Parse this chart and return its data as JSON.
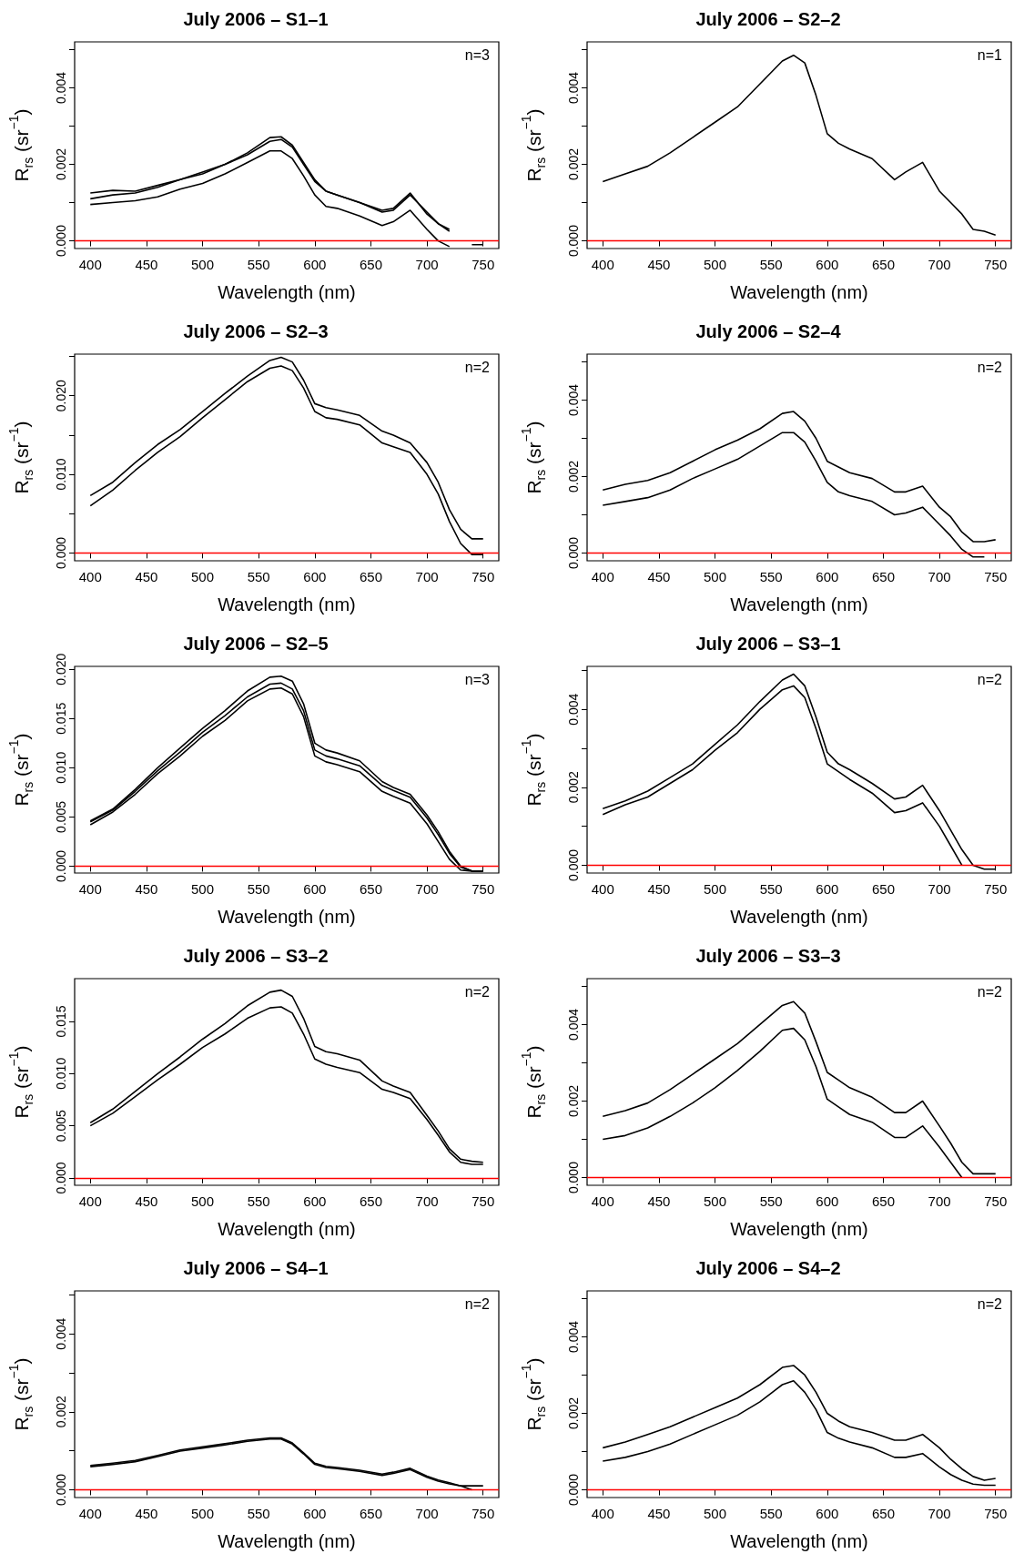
{
  "chart_data": [
    {
      "type": "line",
      "title": "July 2006 – S1–1",
      "xlabel": "Wavelength (nm)",
      "ylabel": "R$_{rs}$ (sr$^{−1}$)",
      "annotations": [
        "n=3"
      ],
      "x": [
        400,
        420,
        440,
        460,
        480,
        500,
        520,
        540,
        560,
        570,
        580,
        590,
        600,
        610,
        620,
        640,
        660,
        670,
        685,
        700,
        710,
        720,
        730,
        740,
        750
      ],
      "xlim": [
        386,
        764
      ],
      "xticks": [
        400,
        450,
        500,
        550,
        600,
        650,
        700,
        750
      ],
      "ylim": [
        -0.0002,
        0.0052
      ],
      "yticks": [
        {
          "value": 0,
          "label": "0.000"
        },
        {
          "value": 0.001,
          "label": null
        },
        {
          "value": 0.002,
          "label": "0.002"
        },
        {
          "value": 0.003,
          "label": null
        },
        {
          "value": 0.004,
          "label": "0.004"
        },
        {
          "value": 0.005,
          "label": null
        }
      ],
      "grid": false,
      "ref_lines": [
        {
          "axis": "y",
          "value": 0,
          "color": "#ff0000"
        }
      ],
      "series": [
        {
          "color": "#000000",
          "values": [
            0.00125,
            0.00132,
            0.0013,
            0.00145,
            0.0016,
            0.0018,
            0.002,
            0.0023,
            0.0027,
            0.00272,
            0.0025,
            0.00205,
            0.0016,
            0.0013,
            0.0012,
            0.001,
            0.0008,
            0.00085,
            0.00125,
            0.0007,
            0.00045,
            0.0003,
            null,
            null,
            null
          ]
        },
        {
          "color": "#000000",
          "values": [
            0.0011,
            0.0012,
            0.00125,
            0.0014,
            0.0016,
            0.00175,
            0.002,
            0.00225,
            0.0026,
            0.00265,
            0.00245,
            0.002,
            0.00155,
            0.0013,
            0.0012,
            0.001,
            0.00075,
            0.0008,
            0.0012,
            0.00075,
            0.00045,
            0.00025,
            null,
            null,
            null
          ]
        },
        {
          "color": "#000000",
          "values": [
            0.00095,
            0.001,
            0.00105,
            0.00115,
            0.00135,
            0.0015,
            0.00175,
            0.00205,
            0.00235,
            0.00235,
            0.00215,
            0.0017,
            0.0012,
            0.0009,
            0.00085,
            0.00065,
            0.0004,
            0.0005,
            0.0008,
            0.0003,
            0.0,
            -0.00015,
            null,
            -0.0001,
            -0.0001
          ]
        }
      ]
    },
    {
      "type": "line",
      "title": "July 2006 – S2–2",
      "xlabel": "Wavelength (nm)",
      "ylabel": "R$_{rs}$ (sr$^{−1}$)",
      "annotations": [
        "n=1"
      ],
      "x": [
        400,
        420,
        440,
        460,
        480,
        500,
        520,
        540,
        560,
        570,
        580,
        590,
        600,
        610,
        620,
        640,
        660,
        670,
        685,
        700,
        710,
        720,
        730,
        740,
        750
      ],
      "xlim": [
        386,
        764
      ],
      "xticks": [
        400,
        450,
        500,
        550,
        600,
        650,
        700,
        750
      ],
      "ylim": [
        -0.0002,
        0.0052
      ],
      "yticks": [
        {
          "value": 0,
          "label": "0.000"
        },
        {
          "value": 0.001,
          "label": null
        },
        {
          "value": 0.002,
          "label": "0.002"
        },
        {
          "value": 0.003,
          "label": null
        },
        {
          "value": 0.004,
          "label": "0.004"
        },
        {
          "value": 0.005,
          "label": null
        }
      ],
      "grid": false,
      "ref_lines": [
        {
          "axis": "y",
          "value": 0,
          "color": "#ff0000"
        }
      ],
      "series": [
        {
          "color": "#000000",
          "values": [
            0.00155,
            0.00175,
            0.00195,
            0.0023,
            0.0027,
            0.0031,
            0.0035,
            0.0041,
            0.0047,
            0.00485,
            0.00465,
            0.0038,
            0.0028,
            0.00255,
            0.0024,
            0.00215,
            0.0016,
            0.0018,
            0.00205,
            0.0013,
            0.001,
            0.0007,
            0.0003,
            0.00025,
            0.00015
          ]
        }
      ]
    },
    {
      "type": "line",
      "title": "July 2006 – S2–3",
      "xlabel": "Wavelength (nm)",
      "ylabel": "R$_{rs}$ (sr$^{−1}$)",
      "annotations": [
        "n=2"
      ],
      "x": [
        400,
        420,
        440,
        460,
        480,
        500,
        520,
        540,
        560,
        570,
        580,
        590,
        600,
        610,
        620,
        640,
        660,
        670,
        685,
        700,
        710,
        720,
        730,
        740,
        750
      ],
      "xlim": [
        386,
        764
      ],
      "xticks": [
        400,
        450,
        500,
        550,
        600,
        650,
        700,
        750
      ],
      "ylim": [
        -0.001,
        0.0253
      ],
      "yticks": [
        {
          "value": 0,
          "label": "0.000"
        },
        {
          "value": 0.005,
          "label": null
        },
        {
          "value": 0.01,
          "label": "0.010"
        },
        {
          "value": 0.015,
          "label": null
        },
        {
          "value": 0.02,
          "label": "0.020"
        },
        {
          "value": 0.025,
          "label": null
        }
      ],
      "grid": false,
      "ref_lines": [
        {
          "axis": "y",
          "value": 0,
          "color": "#ff0000"
        }
      ],
      "series": [
        {
          "color": "#000000",
          "values": [
            0.0073,
            0.009,
            0.0115,
            0.0138,
            0.0157,
            0.018,
            0.0203,
            0.0225,
            0.0245,
            0.0249,
            0.0243,
            0.022,
            0.019,
            0.0185,
            0.0182,
            0.0175,
            0.0155,
            0.015,
            0.014,
            0.0115,
            0.009,
            0.0055,
            0.003,
            0.0018,
            0.0018
          ]
        },
        {
          "color": "#000000",
          "values": [
            0.006,
            0.008,
            0.0105,
            0.0128,
            0.0148,
            0.0172,
            0.0195,
            0.0218,
            0.0235,
            0.0238,
            0.0232,
            0.021,
            0.018,
            0.0172,
            0.017,
            0.0163,
            0.014,
            0.0135,
            0.0128,
            0.01,
            0.0075,
            0.004,
            0.0012,
            -0.0002,
            -0.0002
          ]
        }
      ]
    },
    {
      "type": "line",
      "title": "July 2006 – S2–4",
      "xlabel": "Wavelength (nm)",
      "ylabel": "R$_{rs}$ (sr$^{−1}$)",
      "annotations": [
        "n=2"
      ],
      "x": [
        400,
        420,
        440,
        460,
        480,
        500,
        520,
        540,
        560,
        570,
        580,
        590,
        600,
        610,
        620,
        640,
        660,
        670,
        685,
        700,
        710,
        720,
        730,
        740,
        750
      ],
      "xlim": [
        386,
        764
      ],
      "xticks": [
        400,
        450,
        500,
        550,
        600,
        650,
        700,
        750
      ],
      "ylim": [
        -0.0002,
        0.0052
      ],
      "yticks": [
        {
          "value": 0,
          "label": "0.000"
        },
        {
          "value": 0.001,
          "label": null
        },
        {
          "value": 0.002,
          "label": "0.002"
        },
        {
          "value": 0.003,
          "label": null
        },
        {
          "value": 0.004,
          "label": "0.004"
        },
        {
          "value": 0.005,
          "label": null
        }
      ],
      "grid": false,
      "ref_lines": [
        {
          "axis": "y",
          "value": 0,
          "color": "#ff0000"
        }
      ],
      "series": [
        {
          "color": "#000000",
          "values": [
            0.00165,
            0.0018,
            0.0019,
            0.0021,
            0.0024,
            0.0027,
            0.00295,
            0.00325,
            0.00365,
            0.0037,
            0.00345,
            0.003,
            0.0024,
            0.00225,
            0.0021,
            0.00195,
            0.0016,
            0.0016,
            0.00175,
            0.0012,
            0.00095,
            0.00055,
            0.0003,
            0.0003,
            0.00035
          ]
        },
        {
          "color": "#000000",
          "values": [
            0.00125,
            0.00135,
            0.00145,
            0.00165,
            0.00195,
            0.0022,
            0.00245,
            0.0028,
            0.00315,
            0.00315,
            0.0029,
            0.0024,
            0.00185,
            0.0016,
            0.0015,
            0.00135,
            0.001,
            0.00105,
            0.0012,
            0.00075,
            0.00045,
            0.0001,
            -0.0001,
            -0.0001,
            null
          ]
        }
      ]
    },
    {
      "type": "line",
      "title": "July 2006 – S2–5",
      "xlabel": "Wavelength (nm)",
      "ylabel": "R$_{rs}$ (sr$^{−1}$)",
      "annotations": [
        "n=3"
      ],
      "x": [
        400,
        420,
        440,
        460,
        480,
        500,
        520,
        540,
        560,
        570,
        580,
        590,
        600,
        610,
        620,
        640,
        660,
        670,
        685,
        700,
        710,
        720,
        730,
        740,
        750
      ],
      "xlim": [
        386,
        764
      ],
      "xticks": [
        400,
        450,
        500,
        550,
        600,
        650,
        700,
        750
      ],
      "ylim": [
        -0.0007,
        0.0203
      ],
      "yticks": [
        {
          "value": 0,
          "label": "0.000"
        },
        {
          "value": 0.005,
          "label": "0.005"
        },
        {
          "value": 0.01,
          "label": "0.010"
        },
        {
          "value": 0.015,
          "label": "0.015"
        },
        {
          "value": 0.02,
          "label": "0.020"
        }
      ],
      "grid": false,
      "ref_lines": [
        {
          "axis": "y",
          "value": 0,
          "color": "#ff0000"
        }
      ],
      "series": [
        {
          "color": "#000000",
          "values": [
            0.0046,
            0.0058,
            0.0078,
            0.01,
            0.012,
            0.014,
            0.0158,
            0.0178,
            0.0192,
            0.0193,
            0.0188,
            0.0165,
            0.0125,
            0.0118,
            0.0115,
            0.0107,
            0.0086,
            0.008,
            0.0073,
            0.0052,
            0.0035,
            0.0015,
            0.0,
            -0.0005,
            -0.0005
          ]
        },
        {
          "color": "#000000",
          "values": [
            0.0045,
            0.0057,
            0.0076,
            0.0097,
            0.0116,
            0.0136,
            0.0153,
            0.0172,
            0.0185,
            0.0186,
            0.018,
            0.0158,
            0.0118,
            0.0112,
            0.0109,
            0.0102,
            0.0082,
            0.0077,
            0.007,
            0.0049,
            0.0032,
            0.0013,
            -0.0001,
            -0.0005,
            -0.0005
          ]
        },
        {
          "color": "#000000",
          "values": [
            0.0042,
            0.0055,
            0.0073,
            0.0094,
            0.0112,
            0.0132,
            0.0148,
            0.0168,
            0.018,
            0.0181,
            0.0175,
            0.0152,
            0.0112,
            0.0106,
            0.0103,
            0.0096,
            0.0076,
            0.0071,
            0.0064,
            0.0043,
            0.0025,
            0.0007,
            -0.0004,
            -0.0005,
            -0.0005
          ]
        }
      ]
    },
    {
      "type": "line",
      "title": "July 2006 – S3–1",
      "xlabel": "Wavelength (nm)",
      "ylabel": "R$_{rs}$ (sr$^{−1}$)",
      "annotations": [
        "n=2"
      ],
      "x": [
        400,
        420,
        440,
        460,
        480,
        500,
        520,
        540,
        560,
        570,
        580,
        590,
        600,
        610,
        620,
        640,
        660,
        670,
        685,
        700,
        710,
        720,
        730,
        740,
        750
      ],
      "xlim": [
        386,
        764
      ],
      "xticks": [
        400,
        450,
        500,
        550,
        600,
        650,
        700,
        750
      ],
      "ylim": [
        -0.0002,
        0.0051
      ],
      "yticks": [
        {
          "value": 0,
          "label": "0.000"
        },
        {
          "value": 0.001,
          "label": null
        },
        {
          "value": 0.002,
          "label": "0.002"
        },
        {
          "value": 0.003,
          "label": null
        },
        {
          "value": 0.004,
          "label": "0.004"
        },
        {
          "value": 0.005,
          "label": null
        }
      ],
      "grid": false,
      "ref_lines": [
        {
          "axis": "y",
          "value": 0,
          "color": "#ff0000"
        }
      ],
      "series": [
        {
          "color": "#000000",
          "values": [
            0.00145,
            0.00165,
            0.0019,
            0.00225,
            0.0026,
            0.0031,
            0.0036,
            0.0042,
            0.00475,
            0.0049,
            0.0046,
            0.0038,
            0.0029,
            0.0026,
            0.00245,
            0.0021,
            0.0017,
            0.00175,
            0.00205,
            0.0014,
            0.0009,
            0.0004,
            0.0,
            -0.0001,
            -0.0001
          ]
        },
        {
          "color": "#000000",
          "values": [
            0.0013,
            0.00155,
            0.00175,
            0.0021,
            0.00245,
            0.00295,
            0.0034,
            0.004,
            0.0045,
            0.0046,
            0.0043,
            0.0035,
            0.0026,
            0.0024,
            0.0022,
            0.00185,
            0.00135,
            0.0014,
            0.0016,
            0.001,
            0.0005,
            0.0,
            null,
            null,
            null
          ]
        }
      ]
    },
    {
      "type": "line",
      "title": "July 2006 – S3–2",
      "xlabel": "Wavelength (nm)",
      "ylabel": "R$_{rs}$ (sr$^{−1}$)",
      "annotations": [
        "n=2"
      ],
      "x": [
        400,
        420,
        440,
        460,
        480,
        500,
        520,
        540,
        560,
        570,
        580,
        590,
        600,
        610,
        620,
        640,
        660,
        670,
        685,
        700,
        710,
        720,
        730,
        740,
        750
      ],
      "xlim": [
        386,
        764
      ],
      "xticks": [
        400,
        450,
        500,
        550,
        600,
        650,
        700,
        750
      ],
      "ylim": [
        -0.0007,
        0.0191
      ],
      "yticks": [
        {
          "value": 0,
          "label": "0.000"
        },
        {
          "value": 0.005,
          "label": "0.005"
        },
        {
          "value": 0.01,
          "label": "0.010"
        },
        {
          "value": 0.015,
          "label": "0.015"
        }
      ],
      "grid": false,
      "ref_lines": [
        {
          "axis": "y",
          "value": 0,
          "color": "#ff0000"
        }
      ],
      "series": [
        {
          "color": "#000000",
          "values": [
            0.0053,
            0.0066,
            0.0083,
            0.01,
            0.0116,
            0.0133,
            0.0148,
            0.0165,
            0.0178,
            0.018,
            0.0174,
            0.0153,
            0.0126,
            0.0121,
            0.0119,
            0.0113,
            0.0093,
            0.0088,
            0.0082,
            0.006,
            0.0045,
            0.0028,
            0.0018,
            0.0016,
            0.0015
          ]
        },
        {
          "color": "#000000",
          "values": [
            0.005,
            0.0062,
            0.0078,
            0.0094,
            0.0109,
            0.0125,
            0.0138,
            0.0153,
            0.0163,
            0.0164,
            0.0158,
            0.0138,
            0.0114,
            0.0109,
            0.0106,
            0.0101,
            0.0085,
            0.0082,
            0.0076,
            0.0056,
            0.0041,
            0.0025,
            0.0015,
            0.0013,
            0.0013
          ]
        }
      ]
    },
    {
      "type": "line",
      "title": "July 2006 – S3–3",
      "xlabel": "Wavelength (nm)",
      "ylabel": "R$_{rs}$ (sr$^{−1}$)",
      "annotations": [
        "n=2"
      ],
      "x": [
        400,
        420,
        440,
        460,
        480,
        500,
        520,
        540,
        560,
        570,
        580,
        590,
        600,
        610,
        620,
        640,
        660,
        670,
        685,
        700,
        710,
        720,
        730,
        740,
        750
      ],
      "xlim": [
        386,
        764
      ],
      "xticks": [
        400,
        450,
        500,
        550,
        600,
        650,
        700,
        750
      ],
      "ylim": [
        -0.0002,
        0.0052
      ],
      "yticks": [
        {
          "value": 0,
          "label": "0.000"
        },
        {
          "value": 0.001,
          "label": null
        },
        {
          "value": 0.002,
          "label": "0.002"
        },
        {
          "value": 0.003,
          "label": null
        },
        {
          "value": 0.004,
          "label": "0.004"
        },
        {
          "value": 0.005,
          "label": null
        }
      ],
      "grid": false,
      "ref_lines": [
        {
          "axis": "y",
          "value": 0,
          "color": "#ff0000"
        }
      ],
      "series": [
        {
          "color": "#000000",
          "values": [
            0.0016,
            0.00175,
            0.00195,
            0.0023,
            0.0027,
            0.0031,
            0.0035,
            0.004,
            0.0045,
            0.0046,
            0.0043,
            0.00355,
            0.00275,
            0.00255,
            0.00235,
            0.0021,
            0.0017,
            0.0017,
            0.002,
            0.00135,
            0.0009,
            0.0004,
            0.0001,
            0.0001,
            0.0001
          ]
        },
        {
          "color": "#000000",
          "values": [
            0.001,
            0.0011,
            0.0013,
            0.0016,
            0.00195,
            0.00235,
            0.0028,
            0.0033,
            0.00385,
            0.0039,
            0.0036,
            0.0029,
            0.00205,
            0.00185,
            0.00165,
            0.00145,
            0.00105,
            0.00105,
            0.00135,
            0.0008,
            0.0004,
            0.0,
            null,
            null,
            null
          ]
        }
      ]
    },
    {
      "type": "line",
      "title": "July 2006 – S4–1",
      "xlabel": "Wavelength (nm)",
      "ylabel": "R$_{rs}$ (sr$^{−1}$)",
      "annotations": [
        "n=2"
      ],
      "x": [
        400,
        420,
        440,
        460,
        480,
        500,
        520,
        540,
        560,
        570,
        580,
        590,
        600,
        610,
        620,
        640,
        660,
        670,
        685,
        700,
        710,
        720,
        730,
        740,
        750
      ],
      "xlim": [
        386,
        764
      ],
      "xticks": [
        400,
        450,
        500,
        550,
        600,
        650,
        700,
        750
      ],
      "ylim": [
        -0.0002,
        0.0051
      ],
      "yticks": [
        {
          "value": 0,
          "label": "0.000"
        },
        {
          "value": 0.001,
          "label": null
        },
        {
          "value": 0.002,
          "label": "0.002"
        },
        {
          "value": 0.003,
          "label": null
        },
        {
          "value": 0.004,
          "label": "0.004"
        },
        {
          "value": 0.005,
          "label": null
        }
      ],
      "grid": false,
      "ref_lines": [
        {
          "axis": "y",
          "value": 0,
          "color": "#ff0000"
        }
      ],
      "series": [
        {
          "color": "#000000",
          "values": [
            0.00062,
            0.00068,
            0.00075,
            0.00088,
            0.00102,
            0.0011,
            0.00118,
            0.00127,
            0.00133,
            0.00133,
            0.0012,
            0.00095,
            0.00068,
            0.0006,
            0.00057,
            0.0005,
            0.0004,
            0.00045,
            0.00055,
            0.00035,
            0.00025,
            0.00018,
            0.0001,
            0.0001,
            0.0001
          ]
        },
        {
          "color": "#000000",
          "values": [
            0.00059,
            0.00065,
            0.00072,
            0.00085,
            0.00099,
            0.00107,
            0.00115,
            0.00124,
            0.0013,
            0.0013,
            0.00117,
            0.00092,
            0.00065,
            0.00057,
            0.00054,
            0.00047,
            0.00037,
            0.00042,
            0.00052,
            0.00032,
            0.00022,
            0.00015,
            0.0001,
            0.0,
            null
          ]
        }
      ]
    },
    {
      "type": "line",
      "title": "July 2006 – S4–2",
      "xlabel": "Wavelength (nm)",
      "ylabel": "R$_{rs}$ (sr$^{−1}$)",
      "annotations": [
        "n=2"
      ],
      "x": [
        400,
        420,
        440,
        460,
        480,
        500,
        520,
        540,
        560,
        570,
        580,
        590,
        600,
        610,
        620,
        640,
        660,
        670,
        685,
        700,
        710,
        720,
        730,
        740,
        750
      ],
      "xlim": [
        386,
        764
      ],
      "xticks": [
        400,
        450,
        500,
        550,
        600,
        650,
        700,
        750
      ],
      "ylim": [
        -0.0002,
        0.0052
      ],
      "yticks": [
        {
          "value": 0,
          "label": "0.000"
        },
        {
          "value": 0.001,
          "label": null
        },
        {
          "value": 0.002,
          "label": "0.002"
        },
        {
          "value": 0.003,
          "label": null
        },
        {
          "value": 0.004,
          "label": "0.004"
        },
        {
          "value": 0.005,
          "label": null
        }
      ],
      "grid": false,
      "ref_lines": [
        {
          "axis": "y",
          "value": 0,
          "color": "#ff0000"
        }
      ],
      "series": [
        {
          "color": "#000000",
          "values": [
            0.0011,
            0.00125,
            0.00145,
            0.00165,
            0.0019,
            0.00215,
            0.0024,
            0.00275,
            0.0032,
            0.00325,
            0.003,
            0.00255,
            0.002,
            0.0018,
            0.00165,
            0.0015,
            0.0013,
            0.0013,
            0.00145,
            0.0011,
            0.0008,
            0.00055,
            0.00035,
            0.00025,
            0.0003
          ]
        },
        {
          "color": "#000000",
          "values": [
            0.00075,
            0.00085,
            0.001,
            0.0012,
            0.00145,
            0.0017,
            0.00195,
            0.0023,
            0.00275,
            0.00285,
            0.00255,
            0.0021,
            0.0015,
            0.00135,
            0.00125,
            0.0011,
            0.00085,
            0.00085,
            0.00095,
            0.0006,
            0.0004,
            0.00025,
            0.00015,
            0.00012,
            0.00012
          ]
        }
      ]
    }
  ]
}
